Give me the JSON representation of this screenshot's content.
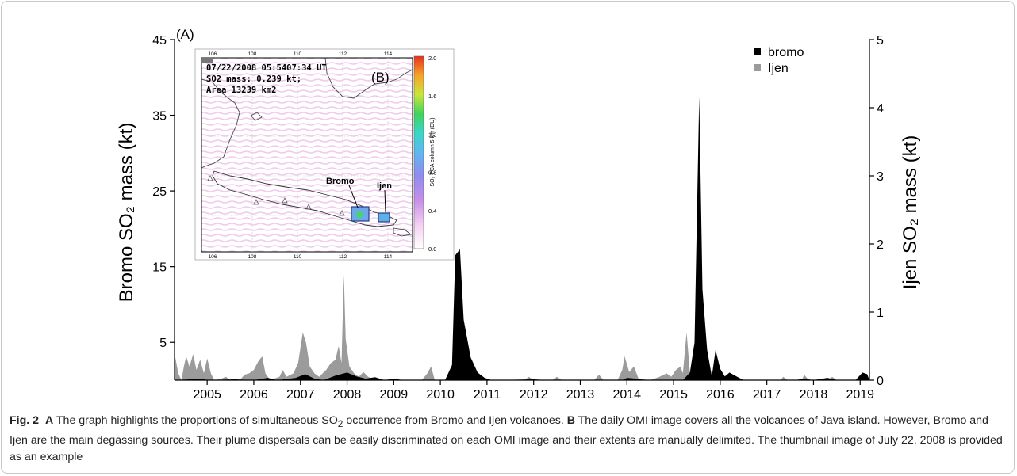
{
  "chart_data": {
    "type": "area",
    "panel_label_a": "(A)",
    "ylabel_left": "Bromo SO₂ mass (kt)",
    "ylabel_right": "Ijen SO₂ mass (kt)",
    "ylim_left": [
      0,
      45
    ],
    "ylim_right": [
      0,
      5
    ],
    "yticks_left": [
      5,
      15,
      25,
      35,
      45
    ],
    "yticks_right": [
      0,
      1,
      2,
      3,
      4,
      5
    ],
    "xlim": [
      2004.3,
      2019.2
    ],
    "xticks": [
      2005,
      2006,
      2007,
      2008,
      2009,
      2010,
      2011,
      2012,
      2013,
      2014,
      2015,
      2016,
      2017,
      2018,
      2019
    ],
    "legend_position": "top-right",
    "series": [
      {
        "name": "bromo",
        "axis": "left",
        "color": "#000000",
        "points": [
          [
            2004.3,
            0
          ],
          [
            2004.9,
            0.2
          ],
          [
            2005.0,
            0
          ],
          [
            2005.6,
            0.1
          ],
          [
            2006.0,
            0
          ],
          [
            2006.3,
            0.3
          ],
          [
            2006.5,
            0
          ],
          [
            2006.9,
            0.3
          ],
          [
            2007.1,
            0.8
          ],
          [
            2007.3,
            0.2
          ],
          [
            2007.5,
            0
          ],
          [
            2007.75,
            0.6
          ],
          [
            2008.0,
            1.0
          ],
          [
            2008.2,
            0.5
          ],
          [
            2008.4,
            0.2
          ],
          [
            2008.6,
            0.4
          ],
          [
            2008.8,
            0
          ],
          [
            2009.0,
            0.2
          ],
          [
            2009.2,
            0
          ],
          [
            2009.8,
            0
          ],
          [
            2010.1,
            0
          ],
          [
            2010.25,
            2
          ],
          [
            2010.32,
            16.5
          ],
          [
            2010.42,
            17.3
          ],
          [
            2010.5,
            8
          ],
          [
            2010.65,
            3
          ],
          [
            2010.8,
            1.0
          ],
          [
            2010.95,
            0.3
          ],
          [
            2011.1,
            0
          ],
          [
            2012.0,
            0.1
          ],
          [
            2012.3,
            0
          ],
          [
            2013.9,
            0
          ],
          [
            2014.0,
            0.3
          ],
          [
            2014.2,
            0.2
          ],
          [
            2014.4,
            0
          ],
          [
            2015.2,
            0
          ],
          [
            2015.35,
            1
          ],
          [
            2015.45,
            5
          ],
          [
            2015.55,
            37.5
          ],
          [
            2015.62,
            12
          ],
          [
            2015.72,
            4
          ],
          [
            2015.82,
            0.5
          ],
          [
            2015.9,
            4
          ],
          [
            2016.0,
            1.5
          ],
          [
            2016.1,
            0.5
          ],
          [
            2016.2,
            1.0
          ],
          [
            2016.35,
            0.5
          ],
          [
            2016.5,
            0
          ],
          [
            2017.6,
            0
          ],
          [
            2017.8,
            0.2
          ],
          [
            2018.0,
            0
          ],
          [
            2018.3,
            0.3
          ],
          [
            2018.5,
            0
          ],
          [
            2018.9,
            0
          ],
          [
            2019.05,
            1.0
          ],
          [
            2019.15,
            0.8
          ],
          [
            2019.2,
            0
          ]
        ]
      },
      {
        "name": "Ijen",
        "axis": "right",
        "color": "#9b9b9b",
        "points": [
          [
            2004.3,
            0.4
          ],
          [
            2004.38,
            0.1
          ],
          [
            2004.45,
            0
          ],
          [
            2004.5,
            0.2
          ],
          [
            2004.55,
            0.35
          ],
          [
            2004.62,
            0.2
          ],
          [
            2004.7,
            0.38
          ],
          [
            2004.77,
            0.15
          ],
          [
            2004.85,
            0.3
          ],
          [
            2004.93,
            0.1
          ],
          [
            2005.0,
            0.32
          ],
          [
            2005.08,
            0.1
          ],
          [
            2005.15,
            0
          ],
          [
            2005.3,
            0.02
          ],
          [
            2005.4,
            0.05
          ],
          [
            2005.5,
            0
          ],
          [
            2005.7,
            0
          ],
          [
            2005.8,
            0.08
          ],
          [
            2005.9,
            0.1
          ],
          [
            2006.0,
            0.15
          ],
          [
            2006.1,
            0.28
          ],
          [
            2006.18,
            0.35
          ],
          [
            2006.25,
            0.1
          ],
          [
            2006.35,
            0
          ],
          [
            2006.55,
            0.05
          ],
          [
            2006.62,
            0.15
          ],
          [
            2006.7,
            0.05
          ],
          [
            2006.85,
            0.1
          ],
          [
            2006.95,
            0.25
          ],
          [
            2007.05,
            0.7
          ],
          [
            2007.12,
            0.55
          ],
          [
            2007.2,
            0.2
          ],
          [
            2007.3,
            0.1
          ],
          [
            2007.4,
            0.05
          ],
          [
            2007.55,
            0.15
          ],
          [
            2007.65,
            0.25
          ],
          [
            2007.75,
            0.3
          ],
          [
            2007.82,
            0.5
          ],
          [
            2007.88,
            0.25
          ],
          [
            2007.93,
            1.55
          ],
          [
            2007.97,
            0.6
          ],
          [
            2008.05,
            0.2
          ],
          [
            2008.15,
            0.1
          ],
          [
            2008.25,
            0.05
          ],
          [
            2008.35,
            0.12
          ],
          [
            2008.45,
            0.05
          ],
          [
            2008.55,
            0.02
          ],
          [
            2008.8,
            0
          ],
          [
            2009.6,
            0
          ],
          [
            2009.72,
            0.1
          ],
          [
            2009.8,
            0.2
          ],
          [
            2009.88,
            0
          ],
          [
            2010.7,
            0
          ],
          [
            2011.8,
            0
          ],
          [
            2011.9,
            0.05
          ],
          [
            2012.0,
            0
          ],
          [
            2012.4,
            0
          ],
          [
            2012.5,
            0.05
          ],
          [
            2012.6,
            0
          ],
          [
            2013.3,
            0
          ],
          [
            2013.4,
            0.08
          ],
          [
            2013.5,
            0
          ],
          [
            2013.8,
            0
          ],
          [
            2013.9,
            0.15
          ],
          [
            2013.95,
            0.35
          ],
          [
            2014.05,
            0.12
          ],
          [
            2014.15,
            0.2
          ],
          [
            2014.25,
            0.02
          ],
          [
            2014.5,
            0
          ],
          [
            2014.7,
            0.05
          ],
          [
            2014.85,
            0.1
          ],
          [
            2014.95,
            0.05
          ],
          [
            2015.05,
            0.15
          ],
          [
            2015.15,
            0.2
          ],
          [
            2015.2,
            0.1
          ],
          [
            2015.28,
            0.7
          ],
          [
            2015.35,
            0.1
          ],
          [
            2015.45,
            0.15
          ],
          [
            2015.55,
            0
          ],
          [
            2016.3,
            0
          ],
          [
            2016.35,
            0.05
          ],
          [
            2016.5,
            0
          ],
          [
            2017.3,
            0
          ],
          [
            2017.35,
            0.05
          ],
          [
            2017.45,
            0
          ],
          [
            2017.75,
            0
          ],
          [
            2017.8,
            0.08
          ],
          [
            2017.9,
            0
          ],
          [
            2018.3,
            0
          ],
          [
            2018.4,
            0.05
          ],
          [
            2018.5,
            0
          ],
          [
            2019.2,
            0
          ]
        ]
      }
    ]
  },
  "inset": {
    "panel_label_b": "(B)",
    "info_line1": "07/22/2008 05:5407:34 UT",
    "info_line2": "SO2 mass: 0.239 kt;",
    "info_line3": "Area 13239 km2",
    "label_bromo": "Bromo",
    "label_ijen": "Ijen",
    "lon_ticks": [
      "106",
      "108",
      "110",
      "112",
      "114"
    ],
    "colorbar_ticks": [
      "2.0",
      "1.6",
      "1.2",
      "0.8",
      "0.4",
      "0.0"
    ],
    "colorbar_label": "SO₂ PCA column 5 km (DU)"
  },
  "caption": {
    "fig_label": "Fig. 2",
    "part_a": "A",
    "text_a_1": " The graph highlights the proportions of simultaneous SO",
    "text_a_sub": "2",
    "text_a_2": " occurrence from Bromo and Ijen volcanoes. ",
    "part_b": "B",
    "text_b": " The daily OMI image covers all the volcanoes of Java island. However, Bromo and Ijen are the main degassing sources. Their plume dispersals can be easily discriminated on each OMI image and their extents are manually delimited. The thumbnail image of July 22, 2008 is provided as an example"
  }
}
